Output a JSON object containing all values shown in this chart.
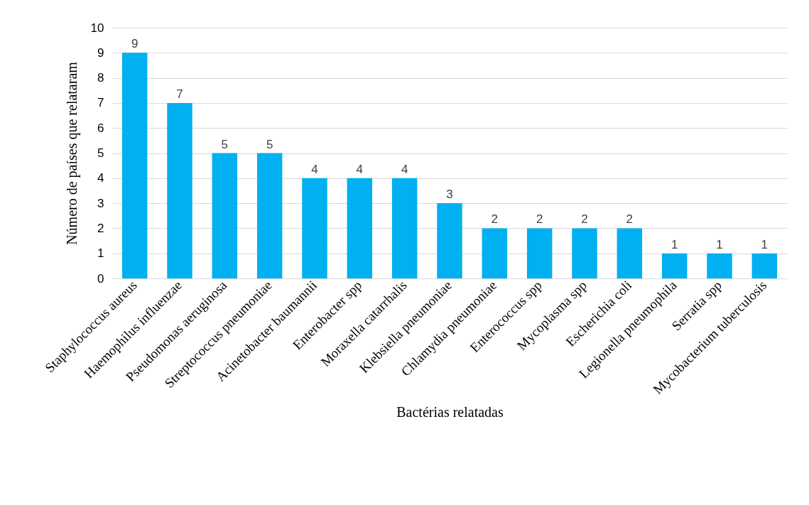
{
  "chart_data": {
    "type": "bar",
    "xlabel": "Bactérias relatadas",
    "ylabel": "Número de países que relataram",
    "categories": [
      "Staphylococcus aureus",
      "Haemophilus influenzae",
      "Pseudomonas aeruginosa",
      "Streptococcus pneumoniae",
      "Acinetobacter baumannii",
      "Enterobacter spp",
      "Moraxella catarrhalis",
      "Klebsiella pneumoniae",
      "Chlamydia pneumoniae",
      "Enterococcus spp",
      "Mycoplasma spp",
      "Escherichia coli",
      "Legionella pneumophila",
      "Serratia spp",
      "Mycobacterium tuberculosis"
    ],
    "values": [
      9,
      7,
      5,
      5,
      4,
      4,
      4,
      3,
      2,
      2,
      2,
      2,
      1,
      1,
      1
    ],
    "color": "#00b0f0",
    "ylim": [
      0,
      10
    ],
    "yticks": [
      0,
      1,
      2,
      3,
      4,
      5,
      6,
      7,
      8,
      9,
      10
    ],
    "grid": "y",
    "data_labels": true
  }
}
